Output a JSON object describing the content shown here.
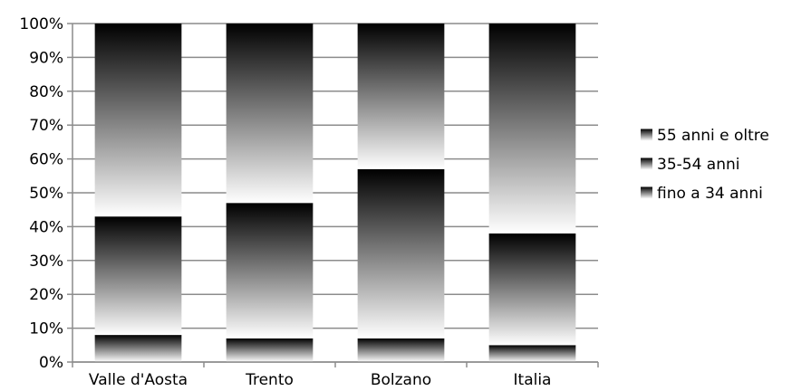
{
  "chart_data": {
    "type": "bar",
    "stacked": true,
    "percent": true,
    "categories": [
      "Valle d'Aosta",
      "Trento",
      "Bolzano",
      "Italia"
    ],
    "series": [
      {
        "name": "fino a 34 anni",
        "values": [
          8,
          7,
          7,
          5
        ]
      },
      {
        "name": "35-54 anni",
        "values": [
          35,
          40,
          50,
          33
        ]
      },
      {
        "name": "55 anni e oltre",
        "values": [
          57,
          53,
          43,
          62
        ]
      }
    ],
    "ylim": [
      0,
      100
    ],
    "yticks": [
      "0%",
      "10%",
      "20%",
      "30%",
      "40%",
      "50%",
      "60%",
      "70%",
      "80%",
      "90%",
      "100%"
    ],
    "grid": true,
    "legend": "right",
    "legend_entries": [
      "55 anni e oltre",
      "35-54 anni",
      "fino a 34 anni"
    ]
  }
}
